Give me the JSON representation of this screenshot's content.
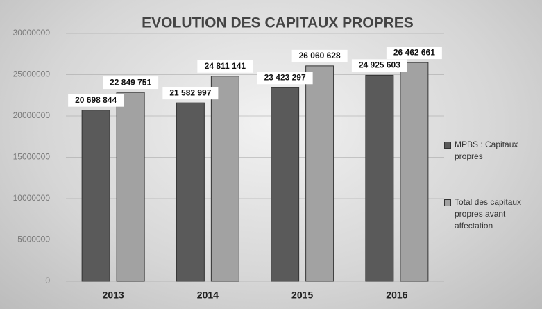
{
  "chart_data": {
    "type": "bar",
    "title": "EVOLUTION DES CAPITAUX PROPRES",
    "categories": [
      "2013",
      "2014",
      "2015",
      "2016"
    ],
    "series": [
      {
        "name": "MPBS : Capitaux propres",
        "color": "#5a5a5a",
        "values": [
          20698844,
          21582997,
          23423297,
          24925603
        ],
        "value_labels": [
          "20 698 844",
          "21 582 997",
          "23 423 297",
          "24 925 603"
        ]
      },
      {
        "name": "Total des capitaux propres avant affectation",
        "color": "#a2a2a2",
        "values": [
          22849751,
          24811141,
          26060628,
          26462661
        ],
        "value_labels": [
          "22 849 751",
          "24 811 141",
          "26 060 628",
          "26 462 661"
        ]
      }
    ],
    "ylim": [
      0,
      30000000
    ],
    "yticks": [
      0,
      5000000,
      10000000,
      15000000,
      20000000,
      25000000,
      30000000
    ],
    "grid": true
  }
}
